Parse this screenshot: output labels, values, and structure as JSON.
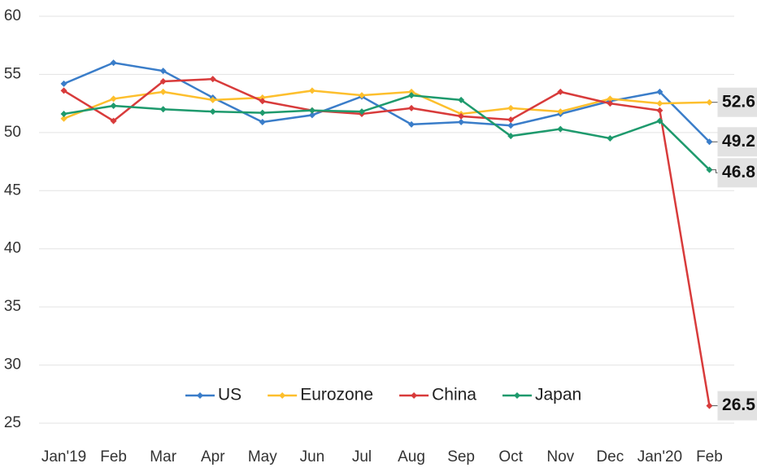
{
  "chart_data": {
    "type": "line",
    "categories": [
      "Jan'19",
      "Feb",
      "Mar",
      "Apr",
      "May",
      "Jun",
      "Jul",
      "Aug",
      "Sep",
      "Oct",
      "Nov",
      "Dec",
      "Jan'20",
      "Feb"
    ],
    "series": [
      {
        "name": "US",
        "color": "#3a7dc9",
        "values": [
          54.2,
          56.0,
          55.3,
          53.0,
          50.9,
          51.5,
          53.1,
          50.7,
          50.9,
          50.6,
          51.6,
          52.7,
          53.5,
          49.2
        ]
      },
      {
        "name": "Eurozone",
        "color": "#fdbf2d",
        "values": [
          51.2,
          52.9,
          53.5,
          52.8,
          53.0,
          53.6,
          53.2,
          53.5,
          51.6,
          52.1,
          51.8,
          52.9,
          52.5,
          52.6
        ]
      },
      {
        "name": "China",
        "color": "#d83b3b",
        "values": [
          53.6,
          51.0,
          54.4,
          54.6,
          52.7,
          51.9,
          51.6,
          52.1,
          51.4,
          51.1,
          53.5,
          52.5,
          51.9,
          26.5
        ]
      },
      {
        "name": "Japan",
        "color": "#1e9a6d",
        "values": [
          51.6,
          52.3,
          52.0,
          51.8,
          51.7,
          51.9,
          51.8,
          53.2,
          52.8,
          49.7,
          50.3,
          49.5,
          51.0,
          46.8
        ]
      }
    ],
    "ylim": [
      25,
      60
    ],
    "yticks": [
      25,
      30,
      35,
      40,
      45,
      50,
      55,
      60
    ],
    "grid": true
  }
}
